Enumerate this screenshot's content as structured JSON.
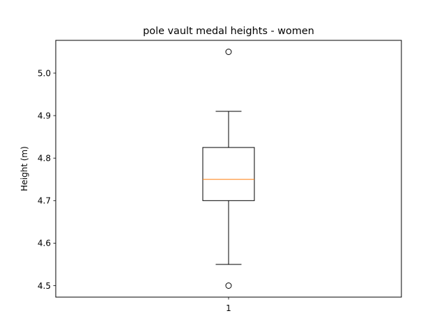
{
  "chart_data": {
    "type": "box",
    "title": "pole vault medal heights - women",
    "xlabel": "",
    "ylabel": "Height (m)",
    "categories": [
      "1"
    ],
    "ylim": [
      4.473,
      5.077
    ],
    "yticks": [
      {
        "value": 4.5,
        "label": "4.5"
      },
      {
        "value": 4.6,
        "label": "4.6"
      },
      {
        "value": 4.7,
        "label": "4.7"
      },
      {
        "value": 4.8,
        "label": "4.8"
      },
      {
        "value": 4.9,
        "label": "4.9"
      },
      {
        "value": 5.0,
        "label": "5.0"
      }
    ],
    "boxes": [
      {
        "category": "1",
        "whisker_low": 4.55,
        "q1": 4.7,
        "median": 4.75,
        "q3": 4.825,
        "whisker_high": 4.91,
        "outliers": [
          4.5,
          5.05
        ]
      }
    ],
    "grid": false,
    "colors": {
      "box": "#000000",
      "median": "#ff7f0e",
      "outlier": "#000000"
    }
  }
}
